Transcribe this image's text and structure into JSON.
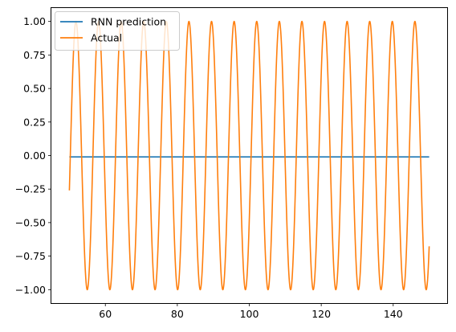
{
  "chart_data": {
    "type": "line",
    "title": "",
    "xlabel": "",
    "ylabel": "",
    "xlim": [
      45.0,
      155.0
    ],
    "ylim": [
      -1.1,
      1.1
    ],
    "xticks": [
      60,
      80,
      100,
      120,
      140
    ],
    "yticks": [
      1.0,
      0.75,
      0.5,
      0.25,
      0.0,
      -0.25,
      -0.5,
      -0.75,
      -1.0
    ],
    "xtick_labels": [
      "60",
      "80",
      "100",
      "120",
      "140"
    ],
    "ytick_labels": [
      "1.00",
      "0.75",
      "0.50",
      "0.25",
      "0.00",
      "−0.25",
      "−0.50",
      "−0.75",
      "−1.00"
    ],
    "grid": false,
    "legend_position": "top-left",
    "series": [
      {
        "name": "RNN prediction",
        "color": "#1f77b4",
        "x": [
          50,
          150
        ],
        "y": [
          -0.01,
          -0.01
        ]
      },
      {
        "name": "Actual",
        "color": "#ff7f0e",
        "x_start": 50,
        "x_end": 150,
        "period": 6.28,
        "amplitude": 1.0,
        "y_at_start": -0.26,
        "y_at_end": -0.75
      }
    ]
  }
}
